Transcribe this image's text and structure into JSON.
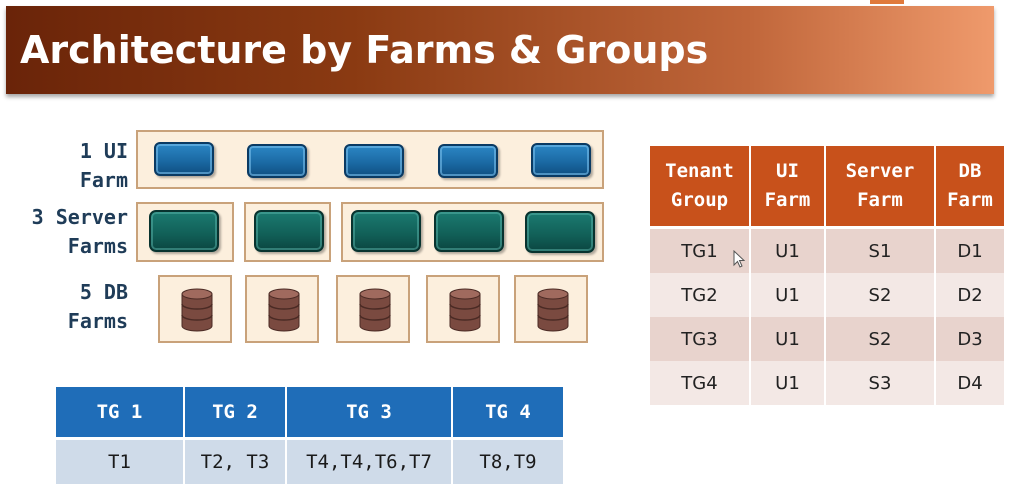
{
  "slide": {
    "title": "Architecture by Farms & Groups"
  },
  "diagram": {
    "rows": [
      {
        "label_line1": "1 UI",
        "label_line2": "Farm"
      },
      {
        "label_line1": "3 Server",
        "label_line2": "Farms"
      },
      {
        "label_line1": "5 DB",
        "label_line2": "Farms"
      }
    ],
    "icons": {
      "ui": "ui-server-icon",
      "server": "server-block-icon",
      "db": "database-cylinder-icon"
    },
    "colors": {
      "ui": "#1b6aa4",
      "server": "#115f57",
      "db": "#7a4a40",
      "farm_bg": "#fcefdd"
    }
  },
  "tenant_groups_table": {
    "headers": [
      "TG 1",
      "TG 2",
      "TG 3",
      "TG 4"
    ],
    "values": [
      "T1",
      "T2, T3",
      "T4,T4,T6,T7",
      "T8,T9"
    ]
  },
  "mapping_table": {
    "headers": [
      {
        "line1": "Tenant",
        "line2": "Group"
      },
      {
        "line1": "UI",
        "line2": "Farm"
      },
      {
        "line1": "Server",
        "line2": "Farm"
      },
      {
        "line1": "DB",
        "line2": "Farm"
      }
    ],
    "rows": [
      [
        "TG1",
        "U1",
        "S1",
        "D1"
      ],
      [
        "TG2",
        "U1",
        "S2",
        "D2"
      ],
      [
        "TG3",
        "U1",
        "S2",
        "D3"
      ],
      [
        "TG4",
        "U1",
        "S3",
        "D4"
      ]
    ],
    "colors": {
      "header": "#c8511b",
      "row_odd": "#e8d3cd",
      "row_even": "#f3e8e5"
    }
  }
}
